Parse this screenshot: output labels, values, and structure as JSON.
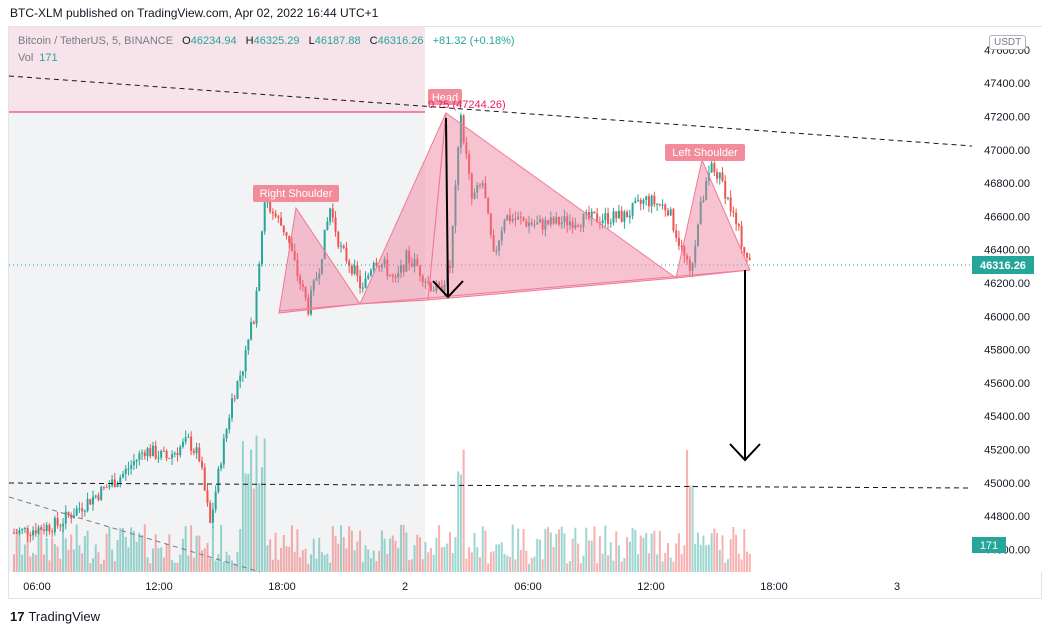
{
  "header": {
    "text": "BTC-XLM published on TradingView.com, Apr 02, 2022 16:44 UTC+1"
  },
  "legend": {
    "symbol": "Bitcoin / TetherUS, 5, BINANCE",
    "o_label": "O",
    "o_value": "46234.94",
    "h_label": "H",
    "h_value": "46325.29",
    "l_label": "L",
    "l_value": "46187.88",
    "c_label": "C",
    "c_value": "46316.26",
    "change": "+81.32 (+0.18%)",
    "vol_label": "Vol",
    "vol_value": "171"
  },
  "currency_label": "USDT",
  "footer": {
    "brand": "TradingView"
  },
  "colors": {
    "up": "#26a69a",
    "down": "#ef5350",
    "pattern": "#f07a98",
    "label_bg": "#f28b9a",
    "price_tag": "#26a69a",
    "magenta": "#e91e63"
  },
  "chart_data": {
    "type": "candlestick",
    "symbol": "Bitcoin / TetherUS",
    "interval": "5",
    "exchange": "BINANCE",
    "x_tick_labels": [
      "06:00",
      "12:00",
      "18:00",
      "2",
      "06:00",
      "12:00",
      "18:00",
      "3"
    ],
    "y_tick_labels": [
      47600,
      47400,
      47200,
      47000,
      46800,
      46600,
      46400,
      46200,
      46000,
      45800,
      45600,
      45400,
      45200,
      45000,
      44800,
      44600
    ],
    "y_range": [
      44500,
      47800
    ],
    "last_price": 46316.26,
    "last_volume": "171",
    "close_path": [
      [
        0,
        44700
      ],
      [
        4,
        44750
      ],
      [
        8,
        44950
      ],
      [
        10,
        45050
      ],
      [
        12,
        45200
      ],
      [
        14,
        45150
      ],
      [
        16,
        45250
      ],
      [
        17,
        45150
      ],
      [
        18,
        44750
      ],
      [
        19,
        45150
      ],
      [
        20,
        45500
      ],
      [
        21,
        45700
      ],
      [
        22,
        46000
      ],
      [
        23,
        46700
      ],
      [
        24,
        46600
      ],
      [
        25,
        46500
      ],
      [
        26,
        46250
      ],
      [
        27,
        46050
      ],
      [
        28,
        46300
      ],
      [
        29,
        46650
      ],
      [
        30,
        46400
      ],
      [
        31,
        46300
      ],
      [
        32,
        46150
      ],
      [
        33,
        46350
      ],
      [
        34,
        46300
      ],
      [
        35,
        46200
      ],
      [
        36,
        46350
      ],
      [
        37,
        46300
      ],
      [
        38,
        46200
      ],
      [
        39,
        46150
      ],
      [
        40,
        46300
      ],
      [
        41,
        47200
      ],
      [
        42,
        46700
      ],
      [
        43,
        46800
      ],
      [
        44,
        46350
      ],
      [
        45,
        46600
      ],
      [
        48,
        46550
      ],
      [
        52,
        46580
      ],
      [
        56,
        46600
      ],
      [
        58,
        46700
      ],
      [
        60,
        46650
      ],
      [
        62,
        46250
      ],
      [
        63,
        46650
      ],
      [
        64,
        46900
      ],
      [
        65,
        46800
      ],
      [
        66,
        46600
      ],
      [
        67,
        46400
      ],
      [
        67.5,
        46316
      ]
    ],
    "annotations": [
      {
        "type": "label",
        "text": "Head"
      },
      {
        "type": "label",
        "text": "Right Shoulder"
      },
      {
        "type": "label",
        "text": "Left Shoulder"
      },
      {
        "type": "price_label",
        "text": "0.75 (47244.26)"
      }
    ]
  }
}
